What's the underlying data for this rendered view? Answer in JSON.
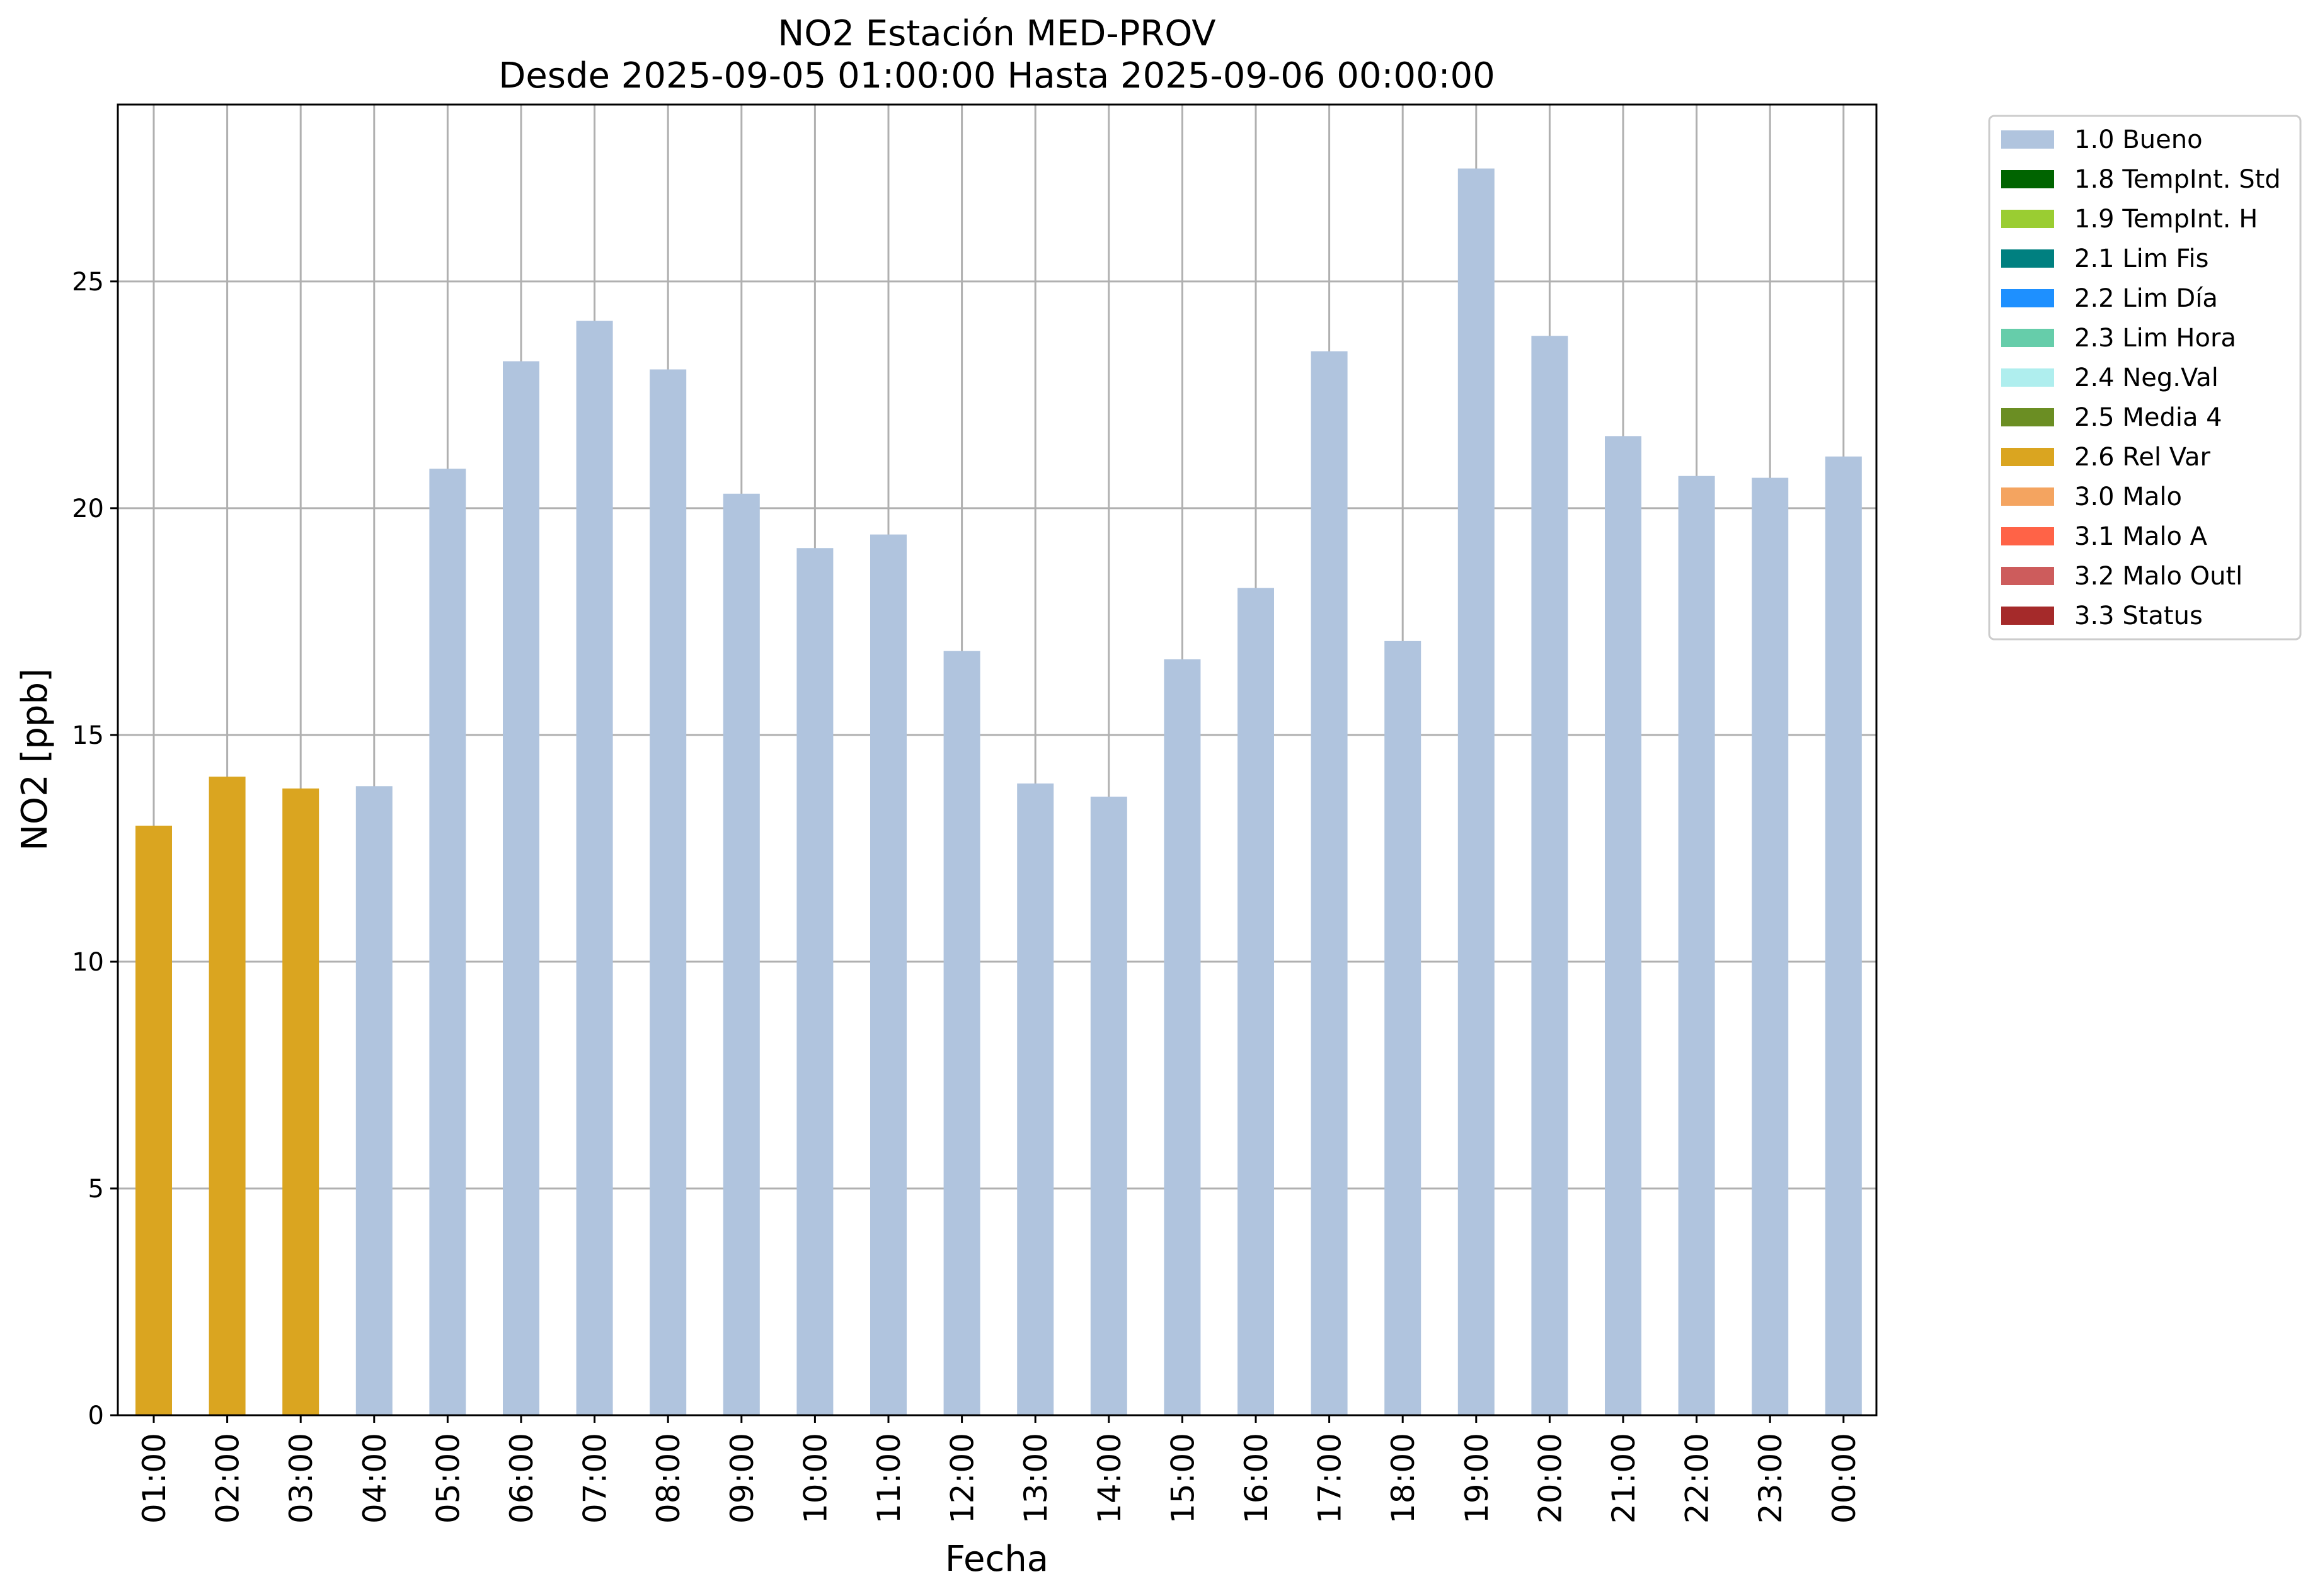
{
  "chart_data": {
    "type": "bar",
    "title": "NO2 Estación MED-PROV",
    "subtitle": "Desde 2025-09-05 01:00:00 Hasta 2025-09-06 00:00:00",
    "xlabel": "Fecha",
    "ylabel": "NO2 [ppb]",
    "ylim": [
      0,
      28.9
    ],
    "yticks": [
      0,
      5,
      10,
      15,
      20,
      25
    ],
    "grid": true,
    "legend_position": "outside-right-top",
    "categories": [
      "01:00",
      "02:00",
      "03:00",
      "04:00",
      "05:00",
      "06:00",
      "07:00",
      "08:00",
      "09:00",
      "10:00",
      "11:00",
      "12:00",
      "13:00",
      "14:00",
      "15:00",
      "16:00",
      "17:00",
      "18:00",
      "19:00",
      "20:00",
      "21:00",
      "22:00",
      "23:00",
      "00:00"
    ],
    "values": [
      13.0,
      14.08,
      13.82,
      13.87,
      20.87,
      23.24,
      24.13,
      23.06,
      20.32,
      19.12,
      19.42,
      16.85,
      13.93,
      13.64,
      16.67,
      18.24,
      23.46,
      17.07,
      27.49,
      23.8,
      21.59,
      20.71,
      20.67,
      21.14
    ],
    "flags": [
      "2.6 Rel Var",
      "2.6 Rel Var",
      "2.6 Rel Var",
      "1.0 Bueno",
      "1.0 Bueno",
      "1.0 Bueno",
      "1.0 Bueno",
      "1.0 Bueno",
      "1.0 Bueno",
      "1.0 Bueno",
      "1.0 Bueno",
      "1.0 Bueno",
      "1.0 Bueno",
      "1.0 Bueno",
      "1.0 Bueno",
      "1.0 Bueno",
      "1.0 Bueno",
      "1.0 Bueno",
      "1.0 Bueno",
      "1.0 Bueno",
      "1.0 Bueno",
      "1.0 Bueno",
      "1.0 Bueno",
      "1.0 Bueno"
    ],
    "legend": [
      {
        "label": "1.0 Bueno",
        "color": "#b0c4de"
      },
      {
        "label": "1.8 TempInt. Std",
        "color": "#006400"
      },
      {
        "label": "1.9 TempInt. H",
        "color": "#9acd32"
      },
      {
        "label": "2.1 Lim Fis",
        "color": "#008080"
      },
      {
        "label": "2.2 Lim Día",
        "color": "#1e90ff"
      },
      {
        "label": "2.3 Lim Hora",
        "color": "#66cdaa"
      },
      {
        "label": "2.4 Neg.Val",
        "color": "#afeeee"
      },
      {
        "label": "2.5 Media 4",
        "color": "#6b8e23"
      },
      {
        "label": "2.6 Rel Var",
        "color": "#daa520"
      },
      {
        "label": "3.0 Malo",
        "color": "#f4a460"
      },
      {
        "label": "3.1 Malo A",
        "color": "#ff6347"
      },
      {
        "label": "3.2 Malo Outl",
        "color": "#cd5c5c"
      },
      {
        "label": "3.3 Status",
        "color": "#a52a2a"
      }
    ]
  }
}
